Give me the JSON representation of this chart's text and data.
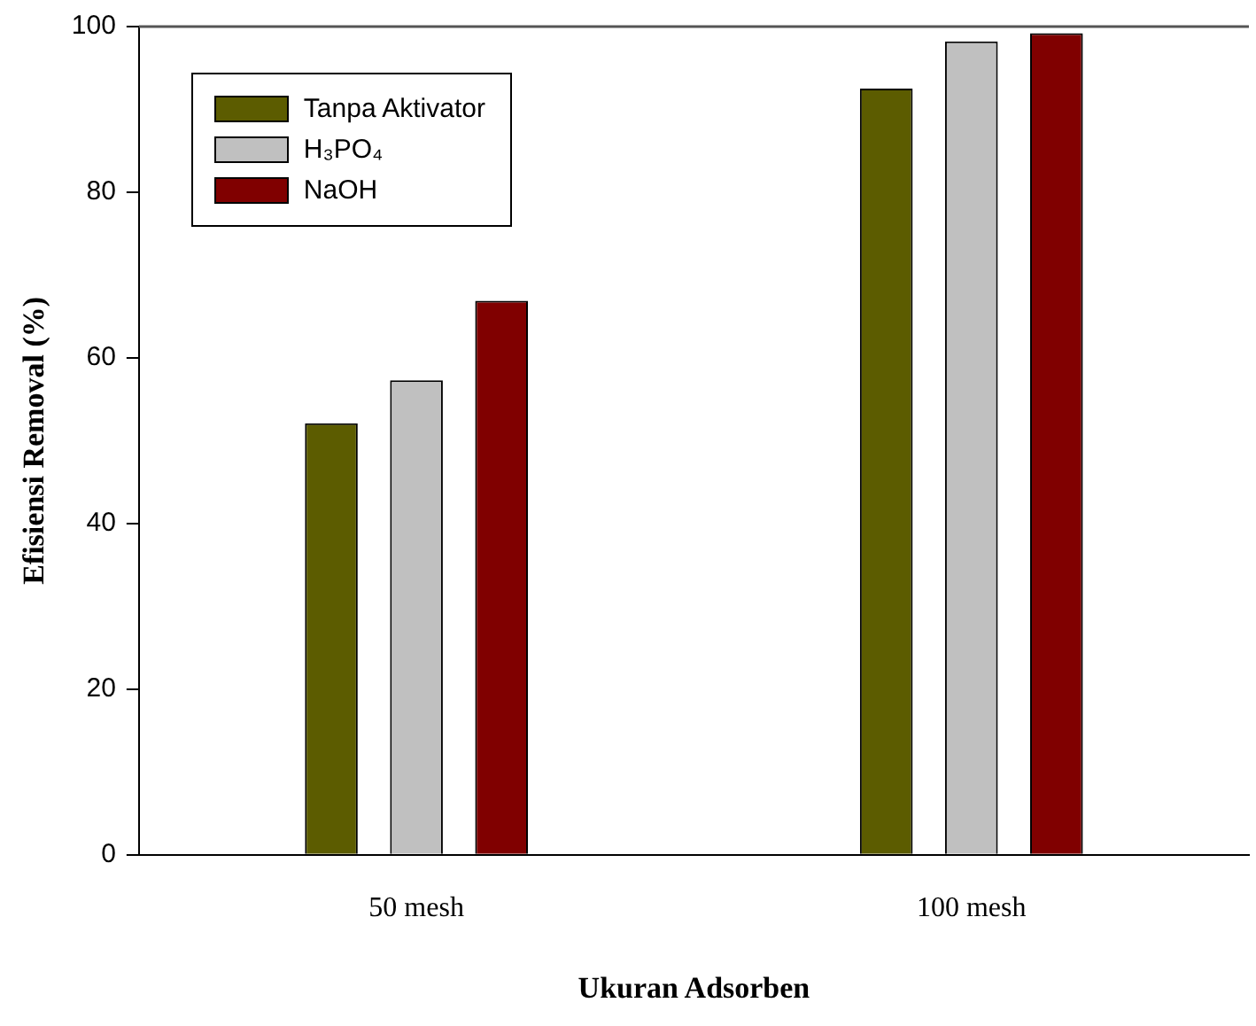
{
  "chart_data": {
    "type": "bar",
    "xlabel": "Ukuran Adsorben",
    "ylabel": "Efisiensi Removal (%)",
    "categories": [
      "50 mesh",
      "100 mesh"
    ],
    "series": [
      {
        "name": "Tanpa Aktivator",
        "color": "#5c5c00",
        "values": [
          52.1,
          92.5
        ]
      },
      {
        "name": "H₃PO₄",
        "color": "#c0c0c0",
        "values": [
          57.3,
          98.2
        ]
      },
      {
        "name": "NaOH",
        "color": "#800000",
        "values": [
          66.9,
          99.2
        ]
      }
    ],
    "ylim": [
      0,
      100
    ],
    "yticks": [
      0,
      20,
      40,
      60,
      80,
      100
    ],
    "grid": false,
    "legend": "top left"
  }
}
